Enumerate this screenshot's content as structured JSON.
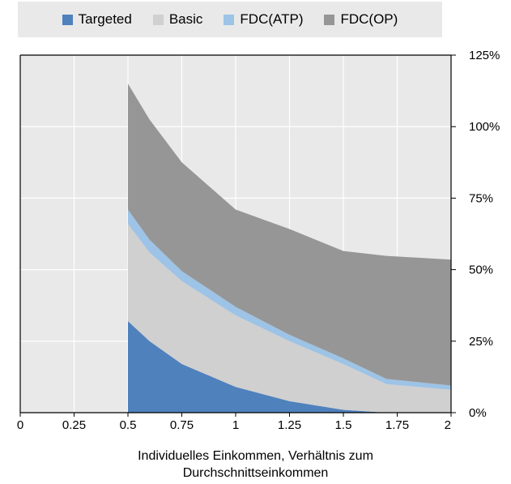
{
  "chart_data": {
    "type": "area",
    "stacked": true,
    "xlabel_lines": [
      "Individuelles Einkommen, Verhältnis zum",
      "Durchschnittseinkommen"
    ],
    "x_ticks": [
      "0",
      "0.25",
      "0.5",
      "0.75",
      "1",
      "1.25",
      "1.5",
      "1.75",
      "2"
    ],
    "y_ticks": [
      "0%",
      "25%",
      "50%",
      "75%",
      "100%",
      "125%"
    ],
    "xlim": [
      0,
      2
    ],
    "ylim": [
      0,
      125
    ],
    "y_axis_side": "right",
    "grid": true,
    "legend_position": "top",
    "x": [
      0.5,
      0.6,
      0.75,
      1.0,
      1.25,
      1.5,
      1.7,
      2.0
    ],
    "series": [
      {
        "name": "Targeted",
        "color": "#4f81bd",
        "values": [
          32,
          25,
          17,
          9,
          4,
          1,
          0,
          0
        ]
      },
      {
        "name": "Basic",
        "color": "#d0d0d0",
        "values": [
          34,
          31,
          29,
          25,
          21,
          16,
          10,
          8
        ]
      },
      {
        "name": "FDC(ATP)",
        "color": "#9dc3e6",
        "values": [
          5,
          4.5,
          3.5,
          3,
          2.2,
          2,
          1.8,
          1.5
        ]
      },
      {
        "name": "FDC(OP)",
        "color": "#969696",
        "values": [
          44,
          42,
          38,
          34,
          37,
          37.5,
          43,
          44
        ]
      }
    ]
  }
}
